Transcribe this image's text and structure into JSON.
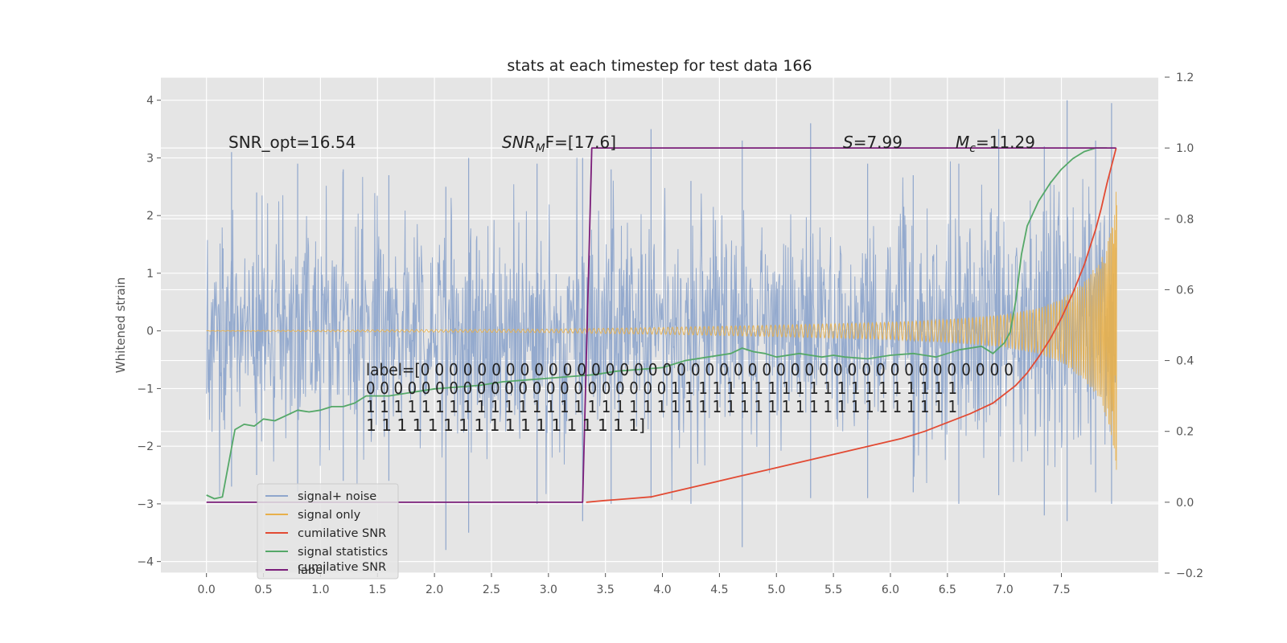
{
  "chart_data": {
    "type": "line",
    "title": "stats at each timestep for test data 166",
    "xlabel": "",
    "ylabel": "Whitened strain",
    "ylabel_right": "",
    "xlim": [
      -0.4,
      8.35
    ],
    "ylim": [
      -4.2,
      4.4
    ],
    "ylim_right": [
      -0.2,
      1.2
    ],
    "x_ticks": [
      0.0,
      0.5,
      1.0,
      1.5,
      2.0,
      2.5,
      3.0,
      3.5,
      4.0,
      4.5,
      5.0,
      5.5,
      6.0,
      6.5,
      7.0,
      7.5
    ],
    "x_tick_labels": [
      "0.0",
      "0.5",
      "1.0",
      "1.5",
      "2.0",
      "2.5",
      "3.0",
      "3.5",
      "4.0",
      "4.5",
      "5.0",
      "5.5",
      "6.0",
      "6.5",
      "7.0",
      "7.5"
    ],
    "y_ticks": [
      -4,
      -3,
      -2,
      -1,
      0,
      1,
      2,
      3,
      4
    ],
    "y_tick_labels": [
      "−4",
      "−3",
      "−2",
      "−1",
      "0",
      "1",
      "2",
      "3",
      "4"
    ],
    "y_right_ticks": [
      -0.2,
      0.0,
      0.2,
      0.4,
      0.6,
      0.8,
      1.0,
      1.2
    ],
    "y_right_tick_labels": [
      "−0.2",
      "0.0",
      "0.2",
      "0.4",
      "0.6",
      "0.8",
      "1.0",
      "1.2"
    ],
    "grid": true,
    "legend_position": "lower-left",
    "annotations": {
      "snr_opt": "SNR_opt=16.54",
      "snr_mf_main": "SNR",
      "snr_mf_sub": "M",
      "snr_mf_rest": "F=[17.6]",
      "s_italic": "S",
      "s_rest": "=7.99",
      "mc_main": "M",
      "mc_sub": "c",
      "mc_rest": "=11.29"
    },
    "label_text_lines": [
      "label=[0 0 0 0 0 0 0 0 0 0 0 0 0 0 0 0 0 0 0 0 0 0 0 0 0 0 0 0 0 0 0 0 0 0 0 0 0 0 0 0 0 0",
      " 0 0 0 0 0 0 0 0 0 0 0 0 0 0 0 0 0 0 0 0 0 0 1 1 1 1 1 1 1 1 1 1 1 1 1 1 1 1 1 1 1 1 1",
      " 1 1 1 1 1 1 1 1 1 1 1 1 1 1 1 1 1 1 1 1 1 1 1 1 1 1 1 1 1 1 1 1 1 1 1 1 1 1 1 1 1 1 1",
      " 1 1 1 1 1 1 1 1 1 1 1 1 1 1 1 1 1 1]"
    ],
    "legend_hidden_text": "cumilative SNR",
    "series": [
      {
        "name": "signal+ noise",
        "axis": "left",
        "color": "#8fa6cc",
        "style": "band",
        "x_range": [
          0.0,
          7.98
        ],
        "envelope": {
          "x": [
            0.0,
            2.0,
            4.0,
            6.0,
            7.0,
            7.5,
            7.8,
            7.98
          ],
          "y": [
            1.0,
            1.0,
            1.0,
            1.0,
            1.05,
            1.15,
            1.3,
            1.5
          ]
        },
        "peaks": {
          "x": [
            0.22,
            0.44,
            0.8,
            1.2,
            1.6,
            2.1,
            2.3,
            2.9,
            3.3,
            3.55,
            3.9,
            4.25,
            4.7,
            5.3,
            5.8,
            6.2,
            6.6,
            6.95,
            7.35,
            7.55,
            7.8,
            7.94
          ],
          "max": [
            3.1,
            2.4,
            2.9,
            2.8,
            2.7,
            2.5,
            3.0,
            2.9,
            3.0,
            2.8,
            3.5,
            2.6,
            3.3,
            3.6,
            2.9,
            2.7,
            2.9,
            3.5,
            3.2,
            4.0,
            3.3,
            3.95
          ],
          "min": [
            -2.7,
            -2.5,
            -2.8,
            -2.6,
            -2.6,
            -3.8,
            -3.5,
            -3.0,
            -3.3,
            -3.0,
            -2.9,
            -3.0,
            -3.75,
            -2.9,
            -2.9,
            -2.8,
            -3.0,
            -2.85,
            -3.2,
            -3.3,
            -2.8,
            -3.0
          ]
        }
      },
      {
        "name": "signal only",
        "axis": "left",
        "color": "#e8b04b",
        "style": "chirp",
        "x_range": [
          0.0,
          7.985
        ],
        "envelope": {
          "x": [
            0.0,
            3.0,
            4.0,
            5.0,
            6.0,
            6.5,
            7.0,
            7.3,
            7.5,
            7.7,
            7.85,
            7.93,
            7.98
          ],
          "y": [
            0.005,
            0.03,
            0.06,
            0.1,
            0.15,
            0.2,
            0.28,
            0.4,
            0.55,
            0.85,
            1.25,
            1.7,
            2.45
          ]
        }
      },
      {
        "name": "cumilative SNR",
        "axis": "right",
        "color": "#e24a33",
        "x": [
          3.33,
          3.5,
          3.7,
          3.9,
          4.1,
          4.3,
          4.5,
          4.7,
          4.9,
          5.1,
          5.3,
          5.5,
          5.7,
          5.9,
          6.1,
          6.3,
          6.5,
          6.7,
          6.9,
          7.1,
          7.2,
          7.3,
          7.4,
          7.5,
          7.6,
          7.7,
          7.8,
          7.85,
          7.9,
          7.94,
          7.98
        ],
        "y": [
          0.0,
          0.005,
          0.01,
          0.015,
          0.03,
          0.045,
          0.06,
          0.075,
          0.09,
          0.105,
          0.12,
          0.135,
          0.15,
          0.165,
          0.18,
          0.2,
          0.225,
          0.25,
          0.28,
          0.33,
          0.365,
          0.41,
          0.46,
          0.52,
          0.59,
          0.67,
          0.77,
          0.83,
          0.9,
          0.95,
          1.0
        ]
      },
      {
        "name": "signal statistics",
        "axis": "right",
        "color": "#348abd",
        "stroke": "#55a868",
        "x": [
          0.0,
          0.07,
          0.14,
          0.25,
          0.33,
          0.42,
          0.5,
          0.6,
          0.7,
          0.8,
          0.9,
          1.0,
          1.1,
          1.2,
          1.3,
          1.4,
          1.6,
          1.8,
          2.0,
          2.2,
          2.4,
          2.6,
          2.8,
          3.0,
          3.2,
          3.4,
          3.6,
          3.8,
          4.0,
          4.2,
          4.4,
          4.6,
          4.7,
          4.8,
          4.9,
          5.0,
          5.2,
          5.4,
          5.5,
          5.6,
          5.8,
          6.0,
          6.2,
          6.4,
          6.6,
          6.8,
          6.9,
          6.95,
          7.0,
          7.05,
          7.1,
          7.15,
          7.2,
          7.3,
          7.4,
          7.5,
          7.6,
          7.7,
          7.8,
          7.9
        ],
        "y": [
          0.02,
          0.01,
          0.015,
          0.205,
          0.22,
          0.215,
          0.235,
          0.23,
          0.245,
          0.26,
          0.255,
          0.26,
          0.27,
          0.27,
          0.28,
          0.3,
          0.3,
          0.31,
          0.32,
          0.325,
          0.33,
          0.34,
          0.345,
          0.35,
          0.355,
          0.36,
          0.37,
          0.375,
          0.38,
          0.4,
          0.41,
          0.42,
          0.435,
          0.425,
          0.42,
          0.41,
          0.42,
          0.41,
          0.415,
          0.41,
          0.405,
          0.415,
          0.42,
          0.41,
          0.43,
          0.44,
          0.42,
          0.435,
          0.45,
          0.48,
          0.57,
          0.7,
          0.78,
          0.85,
          0.9,
          0.94,
          0.97,
          0.99,
          1.0,
          1.0
        ]
      },
      {
        "name": "label",
        "axis": "right",
        "color": "#7b1e7a",
        "x": [
          0.0,
          3.3,
          3.38,
          7.98
        ],
        "y": [
          0.0,
          0.0,
          1.0,
          1.0
        ]
      }
    ]
  }
}
